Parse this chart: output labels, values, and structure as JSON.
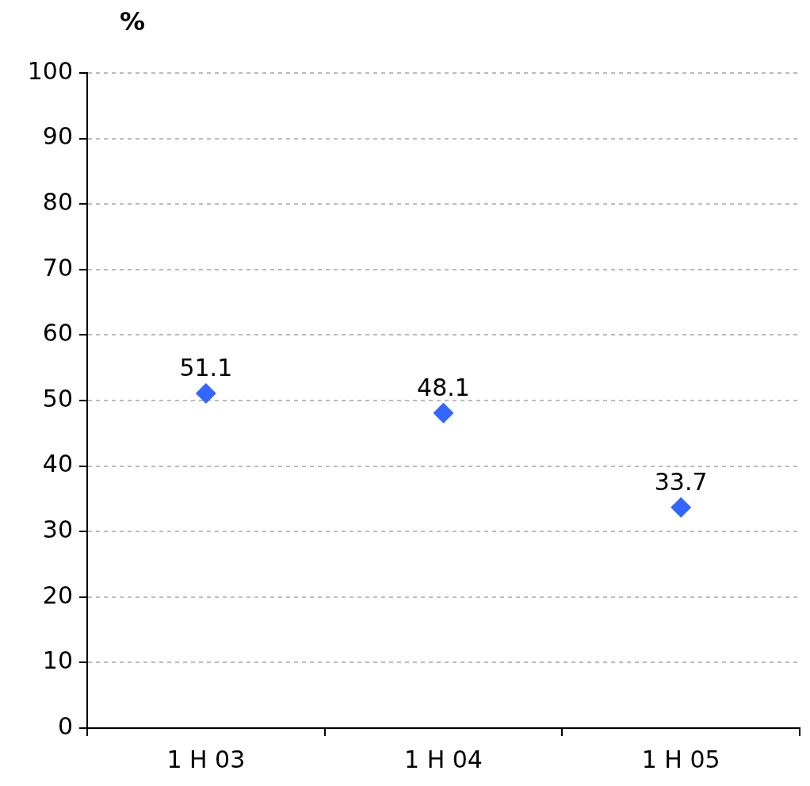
{
  "chart_data": {
    "type": "scatter",
    "ylabel": "%",
    "categories": [
      "1 H 03",
      "1 H 04",
      "1 H 05"
    ],
    "values": [
      51.1,
      48.1,
      33.7
    ],
    "color": "#3366ff",
    "ylim": [
      0,
      100
    ],
    "yticks": [
      0,
      10,
      20,
      30,
      40,
      50,
      60,
      70,
      80,
      90,
      100
    ],
    "grid": "y",
    "marker": "diamond",
    "data_labels": true
  }
}
